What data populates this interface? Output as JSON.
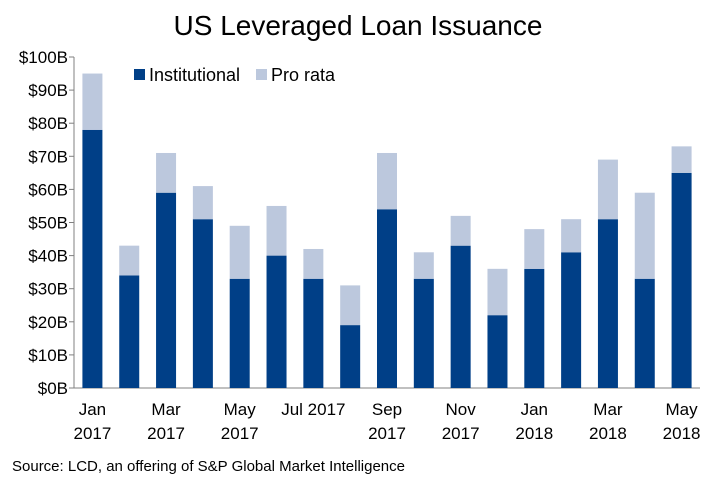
{
  "chart_data": {
    "type": "bar",
    "stacked": true,
    "title": "US Leveraged Loan Issuance",
    "source": "Source: LCD, an offering of S&P Global Market Intelligence",
    "categories": [
      "Jan 2017",
      "Feb 2017",
      "Mar 2017",
      "Apr 2017",
      "May 2017",
      "Jun 2017",
      "Jul 2017",
      "Aug 2017",
      "Sep 2017",
      "Oct 2017",
      "Nov 2017",
      "Dec 2017",
      "Jan 2018",
      "Feb 2018",
      "Mar 2018",
      "Apr 2018",
      "May 2018"
    ],
    "x_tick_labels": [
      {
        "index": 0,
        "lines": [
          "Jan",
          "2017"
        ]
      },
      {
        "index": 2,
        "lines": [
          "Mar",
          "2017"
        ]
      },
      {
        "index": 4,
        "lines": [
          "May",
          "2017"
        ]
      },
      {
        "index": 6,
        "lines": [
          "Jul 2017"
        ]
      },
      {
        "index": 8,
        "lines": [
          "Sep",
          "2017"
        ]
      },
      {
        "index": 10,
        "lines": [
          "Nov",
          "2017"
        ]
      },
      {
        "index": 12,
        "lines": [
          "Jan",
          "2018"
        ]
      },
      {
        "index": 14,
        "lines": [
          "Mar",
          "2018"
        ]
      },
      {
        "index": 16,
        "lines": [
          "May",
          "2018"
        ]
      }
    ],
    "series": [
      {
        "name": "Institutional",
        "color": "#003f87",
        "values": [
          78,
          34,
          59,
          51,
          33,
          40,
          33,
          19,
          54,
          33,
          43,
          22,
          36,
          41,
          51,
          33,
          65
        ]
      },
      {
        "name": "Pro rata",
        "color": "#bcc8dd",
        "values": [
          17,
          9,
          12,
          10,
          16,
          15,
          9,
          12,
          17,
          8,
          9,
          14,
          12,
          10,
          18,
          26,
          8
        ]
      }
    ],
    "ylim": [
      0,
      100
    ],
    "y_ticks": [
      0,
      10,
      20,
      30,
      40,
      50,
      60,
      70,
      80,
      90,
      100
    ],
    "y_tick_labels": [
      "$0B",
      "$10B",
      "$20B",
      "$30B",
      "$40B",
      "$50B",
      "$60B",
      "$70B",
      "$80B",
      "$90B",
      "$100B"
    ],
    "xlabel": "",
    "ylabel": "",
    "grid": false,
    "legend_position": "top-left"
  }
}
